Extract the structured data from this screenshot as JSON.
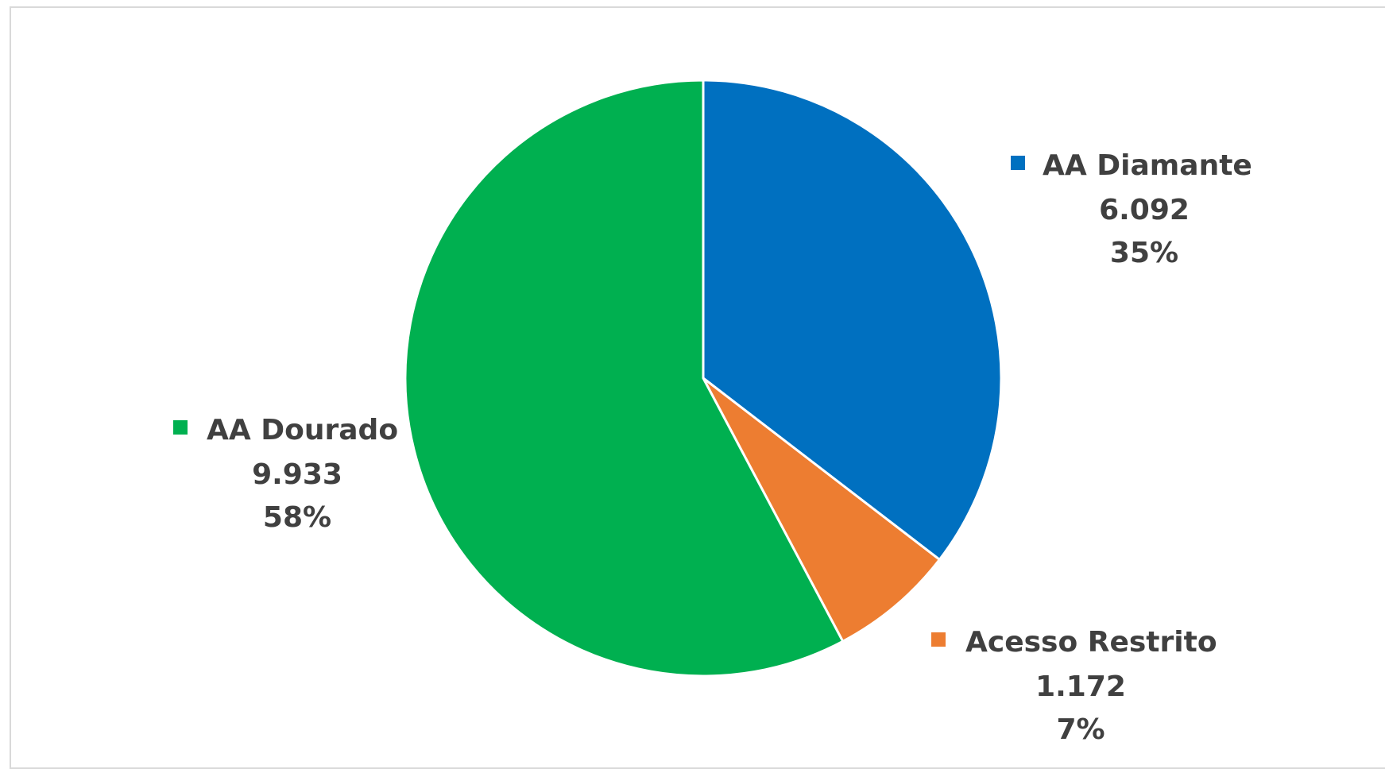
{
  "chart_data": {
    "type": "pie",
    "title": "",
    "slices": [
      {
        "label": "AA Diamante",
        "value": 6092,
        "value_text": "6.092",
        "percent_text": "35%",
        "color": "#0070C0"
      },
      {
        "label": "Acesso Restrito",
        "value": 1172,
        "value_text": "1.172",
        "percent_text": "7%",
        "color": "#ED7D31"
      },
      {
        "label": "AA Dourado",
        "value": 9933,
        "value_text": "9.933",
        "percent_text": "58%",
        "color": "#00B050"
      }
    ],
    "start_angle": "12 o'clock",
    "direction": "clockwise",
    "legend": "none",
    "data_labels": "outside"
  }
}
